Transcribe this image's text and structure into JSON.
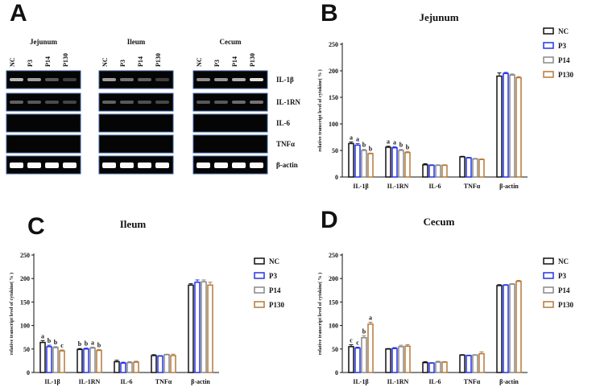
{
  "panel_letters": {
    "a": "A",
    "b": "B",
    "c": "C",
    "d": "D"
  },
  "gel": {
    "tissues": [
      "Jejunum",
      "Ileum",
      "Cecum"
    ],
    "lanes": [
      "NC",
      "P3",
      "P14",
      "P130"
    ],
    "genes": [
      "IL-1β",
      "IL-1RN",
      "IL-6",
      "TNFα",
      "β-actin"
    ],
    "band_intensity": {
      "Jejunum": [
        [
          0.75,
          0.6,
          0.2,
          0.05
        ],
        [
          0.25,
          0.2,
          0.12,
          0.08
        ],
        [
          0,
          0,
          0,
          0
        ],
        [
          0,
          0,
          0,
          0
        ],
        [
          1,
          1,
          1,
          1
        ]
      ],
      "Ileum": [
        [
          0.6,
          0.35,
          0.25,
          0.05
        ],
        [
          0.25,
          0.2,
          0.15,
          0.1
        ],
        [
          0,
          0,
          0,
          0
        ],
        [
          0,
          0,
          0,
          0
        ],
        [
          1,
          1,
          1,
          1
        ]
      ],
      "Cecum": [
        [
          0.5,
          0.55,
          0.7,
          1
        ],
        [
          0.2,
          0.2,
          0.3,
          0.35
        ],
        [
          0,
          0,
          0,
          0
        ],
        [
          0,
          0,
          0,
          0
        ],
        [
          1,
          1,
          1,
          1
        ]
      ]
    }
  },
  "colors": {
    "NC": "#111111",
    "P3": "#2433e8",
    "P14": "#888888",
    "P130": "#b5783a"
  },
  "chart_data": [
    {
      "id": "B",
      "type": "bar",
      "title": "Jejunum",
      "categories": [
        "IL-1β",
        "IL-1RN",
        "IL-6",
        "TNFα",
        "β-actin"
      ],
      "ylabel": "relative transcript level of cytokine( % )",
      "ylim": [
        0,
        250
      ],
      "yticks": [
        0,
        50,
        100,
        150,
        200,
        250
      ],
      "legend": [
        "NC",
        "P3",
        "P14",
        "P130"
      ],
      "series": [
        {
          "name": "NC",
          "values": [
            63,
            56,
            23,
            38,
            190
          ]
        },
        {
          "name": "P3",
          "values": [
            60,
            55,
            22,
            36,
            195
          ]
        },
        {
          "name": "P14",
          "values": [
            50,
            50,
            22,
            34,
            192
          ]
        },
        {
          "name": "P130",
          "values": [
            44,
            46,
            22,
            33,
            187
          ]
        }
      ],
      "errors": [
        [
          3,
          2,
          2,
          1,
          6
        ],
        [
          3,
          2,
          1,
          1,
          2
        ],
        [
          2,
          2,
          1,
          1,
          2
        ],
        [
          1,
          2,
          1,
          1,
          2
        ]
      ],
      "annotations": [
        [
          "a",
          "a",
          "b",
          "b"
        ],
        [
          "a",
          "a",
          "b",
          "b"
        ]
      ]
    },
    {
      "id": "C",
      "type": "bar",
      "title": "Ileum",
      "categories": [
        "IL-1β",
        "IL-1RN",
        "IL-6",
        "TNFα",
        "β-actin"
      ],
      "ylabel": "relative transcript level of cytokine( % )",
      "ylim": [
        0,
        250
      ],
      "yticks": [
        0,
        50,
        100,
        150,
        200,
        250
      ],
      "legend": [
        "NC",
        "P3",
        "P14",
        "P130"
      ],
      "series": [
        {
          "name": "NC",
          "values": [
            64,
            49,
            23,
            36,
            186
          ]
        },
        {
          "name": "P3",
          "values": [
            55,
            50,
            20,
            35,
            192
          ]
        },
        {
          "name": "P14",
          "values": [
            53,
            52,
            21,
            38,
            193
          ]
        },
        {
          "name": "P130",
          "values": [
            46,
            47,
            22,
            36,
            186
          ]
        }
      ],
      "errors": [
        [
          4,
          2,
          3,
          2,
          3
        ],
        [
          3,
          2,
          2,
          1,
          5
        ],
        [
          2,
          2,
          2,
          1,
          4
        ],
        [
          2,
          2,
          2,
          3,
          6
        ]
      ],
      "annotations": [
        [
          "a",
          "b",
          "b",
          "c"
        ],
        [
          "b",
          "b",
          "a",
          "b"
        ]
      ]
    },
    {
      "id": "D",
      "type": "bar",
      "title": "Cecum",
      "categories": [
        "IL-1β",
        "IL-1RN",
        "IL-6",
        "TNFα",
        "β-actin"
      ],
      "ylabel": "relative transcript level of cytokine( % )",
      "ylim": [
        0,
        250
      ],
      "yticks": [
        0,
        50,
        100,
        150,
        200,
        250
      ],
      "legend": [
        "NC",
        "P3",
        "P14",
        "P130"
      ],
      "series": [
        {
          "name": "NC",
          "values": [
            55,
            50,
            21,
            37,
            185
          ]
        },
        {
          "name": "P3",
          "values": [
            52,
            51,
            20,
            36,
            186
          ]
        },
        {
          "name": "P14",
          "values": [
            74,
            55,
            22,
            37,
            188
          ]
        },
        {
          "name": "P130",
          "values": [
            103,
            56,
            22,
            40,
            194
          ]
        }
      ],
      "errors": [
        [
          4,
          1,
          2,
          1,
          2
        ],
        [
          2,
          2,
          1,
          1,
          1
        ],
        [
          4,
          3,
          2,
          1,
          1
        ],
        [
          4,
          3,
          1,
          4,
          2
        ]
      ],
      "annotations": [
        [
          "c",
          "c",
          "b",
          "a"
        ]
      ]
    }
  ]
}
